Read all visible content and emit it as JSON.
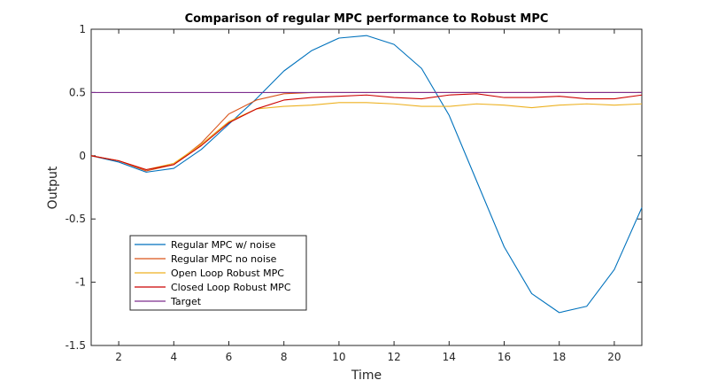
{
  "chart_data": {
    "type": "line",
    "title": "Comparison of regular MPC performance to Robust MPC",
    "xlabel": "Time",
    "ylabel": "Output",
    "xlim": [
      1,
      21
    ],
    "ylim": [
      -1.5,
      1
    ],
    "xticks": [
      2,
      4,
      6,
      8,
      10,
      12,
      14,
      16,
      18,
      20
    ],
    "yticks": [
      -1.5,
      -1,
      -0.5,
      0,
      0.5,
      1
    ],
    "ytick_labels": [
      "-1.5",
      "-1",
      "-0.5",
      "0",
      "0.5",
      "1"
    ],
    "grid": false,
    "legend_position": "bottom-left",
    "x": [
      1,
      2,
      3,
      4,
      5,
      6,
      7,
      8,
      9,
      10,
      11,
      12,
      13,
      14,
      15,
      16,
      17,
      18,
      19,
      20,
      21
    ],
    "series": [
      {
        "name": "Regular MPC w/ noise",
        "color": "#0072BD",
        "values": [
          0,
          -0.05,
          -0.13,
          -0.1,
          0.05,
          0.25,
          0.45,
          0.67,
          0.83,
          0.93,
          0.95,
          0.88,
          0.69,
          0.32,
          -0.2,
          -0.72,
          -1.09,
          -1.24,
          -1.19,
          -0.9,
          -0.41
        ]
      },
      {
        "name": "Regular MPC no noise",
        "color": "#D95319",
        "values": [
          0,
          -0.04,
          -0.12,
          -0.07,
          0.1,
          0.33,
          0.44,
          0.49,
          0.5,
          0.5,
          0.5,
          0.5,
          0.5,
          0.5,
          0.5,
          0.5,
          0.5,
          0.5,
          0.5,
          0.5,
          0.5
        ]
      },
      {
        "name": "Open Loop Robust MPC",
        "color": "#EDB120",
        "values": [
          0,
          -0.04,
          -0.11,
          -0.06,
          0.09,
          0.27,
          0.37,
          0.39,
          0.4,
          0.42,
          0.42,
          0.41,
          0.39,
          0.39,
          0.41,
          0.4,
          0.38,
          0.4,
          0.41,
          0.4,
          0.41
        ]
      },
      {
        "name": "Closed Loop Robust MPC",
        "color": "#CC0000",
        "values": [
          0,
          -0.04,
          -0.11,
          -0.07,
          0.08,
          0.26,
          0.37,
          0.44,
          0.46,
          0.47,
          0.48,
          0.46,
          0.45,
          0.48,
          0.49,
          0.46,
          0.46,
          0.47,
          0.45,
          0.45,
          0.48
        ]
      },
      {
        "name": "Target",
        "color": "#7E2F8E",
        "values": [
          0.5,
          0.5,
          0.5,
          0.5,
          0.5,
          0.5,
          0.5,
          0.5,
          0.5,
          0.5,
          0.5,
          0.5,
          0.5,
          0.5,
          0.5,
          0.5,
          0.5,
          0.5,
          0.5,
          0.5,
          0.5
        ]
      }
    ]
  }
}
